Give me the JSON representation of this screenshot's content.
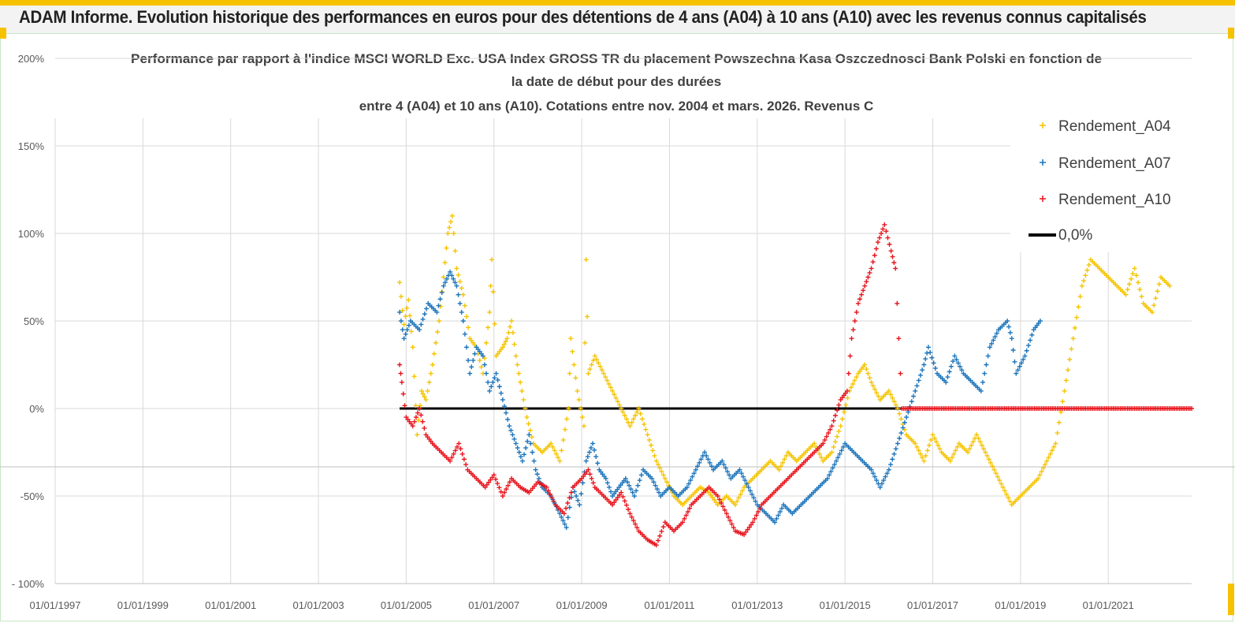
{
  "banner": {
    "title": "ADAM Informe. Evolution historique des performances en euros pour des détentions de 4 ans (A04) à 10 ans (A10) avec les revenus connus capitalisés"
  },
  "colors": {
    "a04": "#f5c400",
    "a07": "#1c75bc",
    "a10": "#e8141c",
    "zero": "#000000",
    "accent": "#f6c200"
  },
  "chart_data": {
    "type": "scatter",
    "title_lines": [
      "Performance par rapport à l'indice MSCI WORLD Exc. USA Index GROSS TR  du placement Powszechna Kasa Oszczednosci Bank Polski en fonction de",
      "la date de début pour des durées",
      "entre 4 (A04) et 10 ans (A10). Cotations entre nov. 2004 et mars. 2026. Revenus C"
    ],
    "xlabel": "",
    "ylabel": "",
    "xlim": [
      1997.0,
      2022.9
    ],
    "ylim": [
      -100,
      200
    ],
    "yticks": [
      -100,
      -50,
      0,
      50,
      100,
      150,
      200
    ],
    "ytick_labels": [
      "- 100%",
      "-50%",
      "0%",
      "50%",
      "100%",
      "150%",
      "200%"
    ],
    "xticks": [
      1997,
      1999,
      2001,
      2003,
      2005,
      2007,
      2009,
      2011,
      2013,
      2015,
      2017,
      2019,
      2021
    ],
    "xtick_labels": [
      "01/01/1997",
      "01/01/1999",
      "01/01/2001",
      "01/01/2003",
      "01/01/2005",
      "01/01/2007",
      "01/01/2009",
      "01/01/2011",
      "01/01/2013",
      "01/01/2015",
      "01/01/2017",
      "01/01/2019",
      "01/01/2021"
    ],
    "legend": {
      "position": "top-right",
      "entries": [
        "Rendement_A04",
        "Rendement_A07",
        "Rendement_A10",
        "0,0%"
      ]
    },
    "series": [
      {
        "name": "Rendement_A04",
        "marker": "+",
        "points": [
          [
            2004.85,
            72
          ],
          [
            2004.95,
            48
          ],
          [
            2005.05,
            62
          ],
          [
            2005.15,
            35
          ],
          [
            2005.25,
            -15
          ],
          [
            2005.35,
            10
          ],
          [
            2005.45,
            5
          ],
          [
            2005.6,
            25
          ],
          [
            2005.75,
            50
          ],
          [
            2005.85,
            75
          ],
          [
            2005.95,
            100
          ],
          [
            2006.05,
            110
          ],
          [
            2006.15,
            80
          ],
          [
            2006.3,
            65
          ],
          [
            2006.45,
            40
          ],
          [
            2006.6,
            35
          ],
          [
            2006.75,
            20
          ],
          [
            2006.9,
            55
          ],
          [
            2006.95,
            85
          ],
          [
            2007.05,
            30
          ],
          [
            2007.2,
            35
          ],
          [
            2007.3,
            40
          ],
          [
            2007.4,
            50
          ],
          [
            2007.5,
            30
          ],
          [
            2007.6,
            15
          ],
          [
            2007.75,
            -5
          ],
          [
            2007.9,
            -20
          ],
          [
            2008.1,
            -25
          ],
          [
            2008.3,
            -20
          ],
          [
            2008.5,
            -30
          ],
          [
            2008.7,
            0
          ],
          [
            2008.75,
            40
          ],
          [
            2008.9,
            10
          ],
          [
            2009.05,
            -10
          ],
          [
            2009.1,
            85
          ],
          [
            2009.15,
            20
          ],
          [
            2009.3,
            30
          ],
          [
            2009.5,
            20
          ],
          [
            2009.7,
            10
          ],
          [
            2009.9,
            0
          ],
          [
            2010.1,
            -10
          ],
          [
            2010.3,
            0
          ],
          [
            2010.5,
            -15
          ],
          [
            2010.7,
            -30
          ],
          [
            2010.9,
            -40
          ],
          [
            2011.1,
            -50
          ],
          [
            2011.3,
            -55
          ],
          [
            2011.5,
            -50
          ],
          [
            2011.7,
            -45
          ],
          [
            2011.9,
            -48
          ],
          [
            2012.1,
            -55
          ],
          [
            2012.3,
            -50
          ],
          [
            2012.5,
            -55
          ],
          [
            2012.7,
            -45
          ],
          [
            2012.9,
            -40
          ],
          [
            2013.1,
            -35
          ],
          [
            2013.3,
            -30
          ],
          [
            2013.5,
            -35
          ],
          [
            2013.7,
            -25
          ],
          [
            2013.9,
            -30
          ],
          [
            2014.1,
            -25
          ],
          [
            2014.3,
            -20
          ],
          [
            2014.5,
            -30
          ],
          [
            2014.7,
            -25
          ],
          [
            2014.9,
            -10
          ],
          [
            2015.1,
            10
          ],
          [
            2015.3,
            20
          ],
          [
            2015.45,
            25
          ],
          [
            2015.6,
            15
          ],
          [
            2015.8,
            5
          ],
          [
            2016.0,
            10
          ],
          [
            2016.2,
            0
          ],
          [
            2016.4,
            -15
          ],
          [
            2016.6,
            -20
          ],
          [
            2016.8,
            -30
          ],
          [
            2017.0,
            -15
          ],
          [
            2017.2,
            -25
          ],
          [
            2017.4,
            -30
          ],
          [
            2017.6,
            -20
          ],
          [
            2017.8,
            -25
          ],
          [
            2018.0,
            -15
          ],
          [
            2018.2,
            -25
          ],
          [
            2018.4,
            -35
          ],
          [
            2018.6,
            -45
          ],
          [
            2018.8,
            -55
          ],
          [
            2019.0,
            -50
          ],
          [
            2019.2,
            -45
          ],
          [
            2019.4,
            -40
          ],
          [
            2019.6,
            -30
          ],
          [
            2019.8,
            -20
          ],
          [
            2020.0,
            10
          ],
          [
            2020.2,
            40
          ],
          [
            2020.4,
            70
          ],
          [
            2020.6,
            85
          ],
          [
            2020.8,
            80
          ],
          [
            2021.0,
            75
          ],
          [
            2021.2,
            70
          ],
          [
            2021.4,
            65
          ],
          [
            2021.6,
            80
          ],
          [
            2021.8,
            60
          ],
          [
            2022.0,
            55
          ],
          [
            2022.2,
            75
          ],
          [
            2022.4,
            70
          ]
        ]
      },
      {
        "name": "Rendement_A07",
        "marker": "+",
        "points": [
          [
            2004.85,
            55
          ],
          [
            2004.95,
            40
          ],
          [
            2005.1,
            50
          ],
          [
            2005.3,
            45
          ],
          [
            2005.5,
            60
          ],
          [
            2005.7,
            55
          ],
          [
            2005.85,
            70
          ],
          [
            2006.0,
            78
          ],
          [
            2006.15,
            70
          ],
          [
            2006.3,
            50
          ],
          [
            2006.45,
            20
          ],
          [
            2006.6,
            35
          ],
          [
            2006.75,
            30
          ],
          [
            2006.9,
            10
          ],
          [
            2007.05,
            20
          ],
          [
            2007.2,
            5
          ],
          [
            2007.35,
            -10
          ],
          [
            2007.5,
            -20
          ],
          [
            2007.65,
            -30
          ],
          [
            2007.8,
            -15
          ],
          [
            2007.95,
            -35
          ],
          [
            2008.1,
            -45
          ],
          [
            2008.3,
            -50
          ],
          [
            2008.5,
            -60
          ],
          [
            2008.65,
            -68
          ],
          [
            2008.8,
            -45
          ],
          [
            2008.95,
            -55
          ],
          [
            2009.1,
            -30
          ],
          [
            2009.25,
            -20
          ],
          [
            2009.4,
            -35
          ],
          [
            2009.55,
            -40
          ],
          [
            2009.7,
            -50
          ],
          [
            2009.85,
            -45
          ],
          [
            2010.0,
            -40
          ],
          [
            2010.2,
            -50
          ],
          [
            2010.4,
            -35
          ],
          [
            2010.6,
            -40
          ],
          [
            2010.8,
            -50
          ],
          [
            2011.0,
            -45
          ],
          [
            2011.2,
            -50
          ],
          [
            2011.4,
            -45
          ],
          [
            2011.6,
            -35
          ],
          [
            2011.8,
            -25
          ],
          [
            2012.0,
            -35
          ],
          [
            2012.2,
            -30
          ],
          [
            2012.4,
            -40
          ],
          [
            2012.6,
            -35
          ],
          [
            2012.8,
            -45
          ],
          [
            2013.0,
            -55
          ],
          [
            2013.2,
            -60
          ],
          [
            2013.4,
            -65
          ],
          [
            2013.6,
            -55
          ],
          [
            2013.8,
            -60
          ],
          [
            2014.0,
            -55
          ],
          [
            2014.2,
            -50
          ],
          [
            2014.4,
            -45
          ],
          [
            2014.6,
            -40
          ],
          [
            2014.8,
            -30
          ],
          [
            2015.0,
            -20
          ],
          [
            2015.2,
            -25
          ],
          [
            2015.4,
            -30
          ],
          [
            2015.6,
            -35
          ],
          [
            2015.8,
            -45
          ],
          [
            2016.0,
            -35
          ],
          [
            2016.2,
            -20
          ],
          [
            2016.4,
            -5
          ],
          [
            2016.6,
            10
          ],
          [
            2016.8,
            25
          ],
          [
            2016.9,
            35
          ],
          [
            2017.1,
            20
          ],
          [
            2017.3,
            15
          ],
          [
            2017.5,
            30
          ],
          [
            2017.7,
            20
          ],
          [
            2017.9,
            15
          ],
          [
            2018.1,
            10
          ],
          [
            2018.3,
            35
          ],
          [
            2018.5,
            45
          ],
          [
            2018.7,
            50
          ],
          [
            2018.8,
            40
          ],
          [
            2018.9,
            20
          ],
          [
            2019.1,
            30
          ],
          [
            2019.3,
            45
          ],
          [
            2019.45,
            50
          ]
        ]
      },
      {
        "name": "Rendement_A10",
        "marker": "+",
        "points": [
          [
            2004.85,
            25
          ],
          [
            2004.9,
            15
          ],
          [
            2005.0,
            -5
          ],
          [
            2005.15,
            -10
          ],
          [
            2005.3,
            0
          ],
          [
            2005.45,
            -15
          ],
          [
            2005.6,
            -20
          ],
          [
            2005.8,
            -25
          ],
          [
            2006.0,
            -30
          ],
          [
            2006.2,
            -20
          ],
          [
            2006.4,
            -35
          ],
          [
            2006.6,
            -40
          ],
          [
            2006.8,
            -45
          ],
          [
            2007.0,
            -38
          ],
          [
            2007.2,
            -50
          ],
          [
            2007.4,
            -40
          ],
          [
            2007.6,
            -45
          ],
          [
            2007.8,
            -48
          ],
          [
            2008.0,
            -42
          ],
          [
            2008.2,
            -45
          ],
          [
            2008.4,
            -55
          ],
          [
            2008.6,
            -60
          ],
          [
            2008.8,
            -45
          ],
          [
            2009.0,
            -40
          ],
          [
            2009.15,
            -35
          ],
          [
            2009.3,
            -45
          ],
          [
            2009.5,
            -50
          ],
          [
            2009.7,
            -55
          ],
          [
            2009.9,
            -48
          ],
          [
            2010.1,
            -60
          ],
          [
            2010.3,
            -70
          ],
          [
            2010.5,
            -75
          ],
          [
            2010.7,
            -78
          ],
          [
            2010.9,
            -65
          ],
          [
            2011.1,
            -70
          ],
          [
            2011.3,
            -65
          ],
          [
            2011.5,
            -55
          ],
          [
            2011.7,
            -50
          ],
          [
            2011.9,
            -45
          ],
          [
            2012.1,
            -50
          ],
          [
            2012.3,
            -60
          ],
          [
            2012.5,
            -70
          ],
          [
            2012.7,
            -72
          ],
          [
            2012.9,
            -65
          ],
          [
            2013.1,
            -55
          ],
          [
            2013.3,
            -50
          ],
          [
            2013.5,
            -45
          ],
          [
            2013.7,
            -40
          ],
          [
            2013.9,
            -35
          ],
          [
            2014.1,
            -30
          ],
          [
            2014.3,
            -25
          ],
          [
            2014.5,
            -20
          ],
          [
            2014.7,
            -10
          ],
          [
            2014.9,
            5
          ],
          [
            2015.05,
            10
          ],
          [
            2015.15,
            40
          ],
          [
            2015.3,
            60
          ],
          [
            2015.45,
            70
          ],
          [
            2015.6,
            80
          ],
          [
            2015.75,
            95
          ],
          [
            2015.9,
            105
          ],
          [
            2016.05,
            90
          ],
          [
            2016.15,
            80
          ],
          [
            2016.3,
            0
          ],
          [
            2017.0,
            0
          ],
          [
            2018.0,
            0
          ],
          [
            2019.0,
            0
          ],
          [
            2020.0,
            0
          ],
          [
            2021.0,
            0
          ],
          [
            2022.0,
            0
          ],
          [
            2022.9,
            0
          ]
        ]
      },
      {
        "name": "0,0%",
        "type": "line",
        "points": [
          [
            2004.85,
            0
          ],
          [
            2016.3,
            0
          ]
        ]
      }
    ]
  }
}
